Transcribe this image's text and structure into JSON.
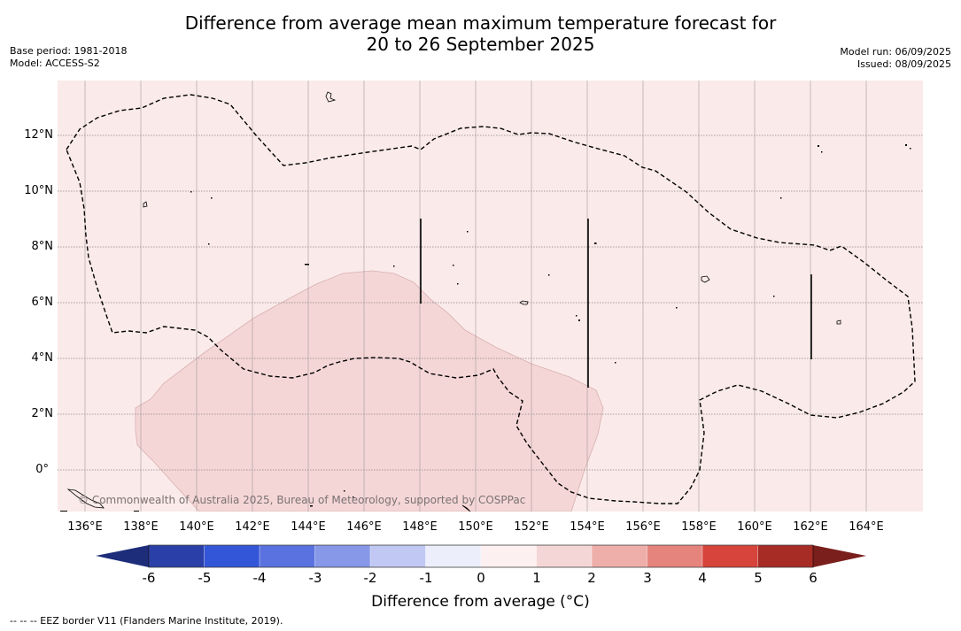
{
  "title_line1": "Difference from average mean maximum temperature forecast for",
  "title_line2": "20 to 26 September 2025",
  "base_period": "Base period: 1981-2018",
  "model": "Model: ACCESS-S2",
  "model_run": "Model run: 06/09/2025",
  "issued": "Issued: 08/09/2025",
  "lat_labels": [
    "12°N",
    "10°N",
    "8°N",
    "6°N",
    "4°N",
    "2°N",
    "0°"
  ],
  "lon_labels": [
    "136°E",
    "138°E",
    "140°E",
    "142°E",
    "144°E",
    "146°E",
    "148°E",
    "150°E",
    "152°E",
    "154°E",
    "156°E",
    "158°E",
    "160°E",
    "162°E",
    "164°E"
  ],
  "copyright": "© Commonwealth of Australia 2025, Bureau of Meteorology, supported by COSPPac",
  "colorbar": {
    "ticks": [
      "-6",
      "-5",
      "-4",
      "-3",
      "-2",
      "-1",
      "0",
      "1",
      "2",
      "3",
      "4",
      "5",
      "6"
    ],
    "colors": [
      "#2b3fa8",
      "#3356d9",
      "#5a72df",
      "#8798e8",
      "#c0c8f3",
      "#eceefb",
      "#fdf0f0",
      "#f5d6d6",
      "#eeafaa",
      "#e5847d",
      "#d6443b",
      "#a82c26"
    ],
    "low_extend_color": "#1d2d7a",
    "high_extend_color": "#7a1f1c",
    "label": "Difference from average (°C)"
  },
  "map_colors": {
    "background_0_1": "#fbeaea",
    "region_1_2": "#f5d6d6"
  },
  "footnote": "--  --  -- EEZ border V11 (Flanders Marine Institute, 2019)."
}
